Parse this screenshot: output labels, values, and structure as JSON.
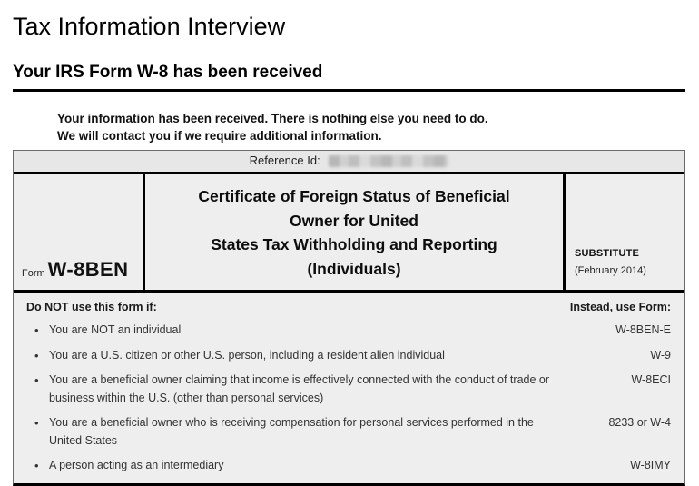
{
  "page": {
    "title": "Tax Information Interview",
    "subtitle": "Your IRS Form W-8 has been received",
    "message_line1": "Your information has been received. There is nothing else you need to do.",
    "message_line2": "We will contact you if we require additional information."
  },
  "form_table": {
    "reference_label": "Reference Id:",
    "form_label": "Form",
    "form_name": "W-8BEN",
    "title_lines": [
      "Certificate of Foreign Status of Beneficial",
      "Owner for United",
      "States Tax Withholding and Reporting",
      "(Individuals)"
    ],
    "substitute_label": "SUBSTITUTE",
    "substitute_date": "(February 2014)",
    "instructions_header": "Do NOT use this form if:",
    "instead_header": "Instead, use Form:",
    "rows": [
      {
        "condition": "You are NOT an individual",
        "form": "W-8BEN-E"
      },
      {
        "condition": "You are a U.S. citizen or other U.S. person, including a resident alien individual",
        "form": "W-9"
      },
      {
        "condition": "You are a beneficial owner claiming that income is effectively connected with the conduct of trade or business within the U.S. (other than personal services)",
        "form": "W-8ECI"
      },
      {
        "condition": "You are a beneficial owner who is receiving compensation for personal services performed in the United States",
        "form": "8233 or W-4"
      },
      {
        "condition": "A person acting as an intermediary",
        "form": "W-8IMY"
      }
    ]
  },
  "icons": {
    "bullet": "•"
  },
  "colors": {
    "table_background": "#eeeeee",
    "reference_row_background": "#e7e7e7",
    "border_black": "#000000",
    "border_outer_gray": "#6b6b6b",
    "text_primary": "#111111",
    "text_body": "#333333"
  }
}
